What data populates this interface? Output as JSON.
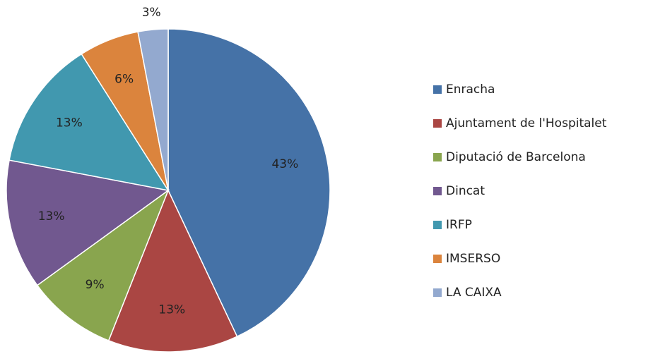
{
  "chart_data": {
    "type": "pie",
    "categories": [
      "Enracha",
      "Ajuntament de l'Hospitalet",
      "Diputació de Barcelona",
      "Dincat",
      "IRFP",
      "IMSERSO",
      "LA CAIXA"
    ],
    "values": [
      43,
      13,
      9,
      13,
      13,
      6,
      3
    ],
    "value_labels": [
      "43%",
      "13%",
      "9%",
      "13%",
      "13%",
      "6%",
      "3%"
    ],
    "colors": [
      "#4572A7",
      "#AA4643",
      "#89A54E",
      "#71588F",
      "#4198AF",
      "#DB843D",
      "#93A9CF"
    ],
    "legend": "right"
  }
}
